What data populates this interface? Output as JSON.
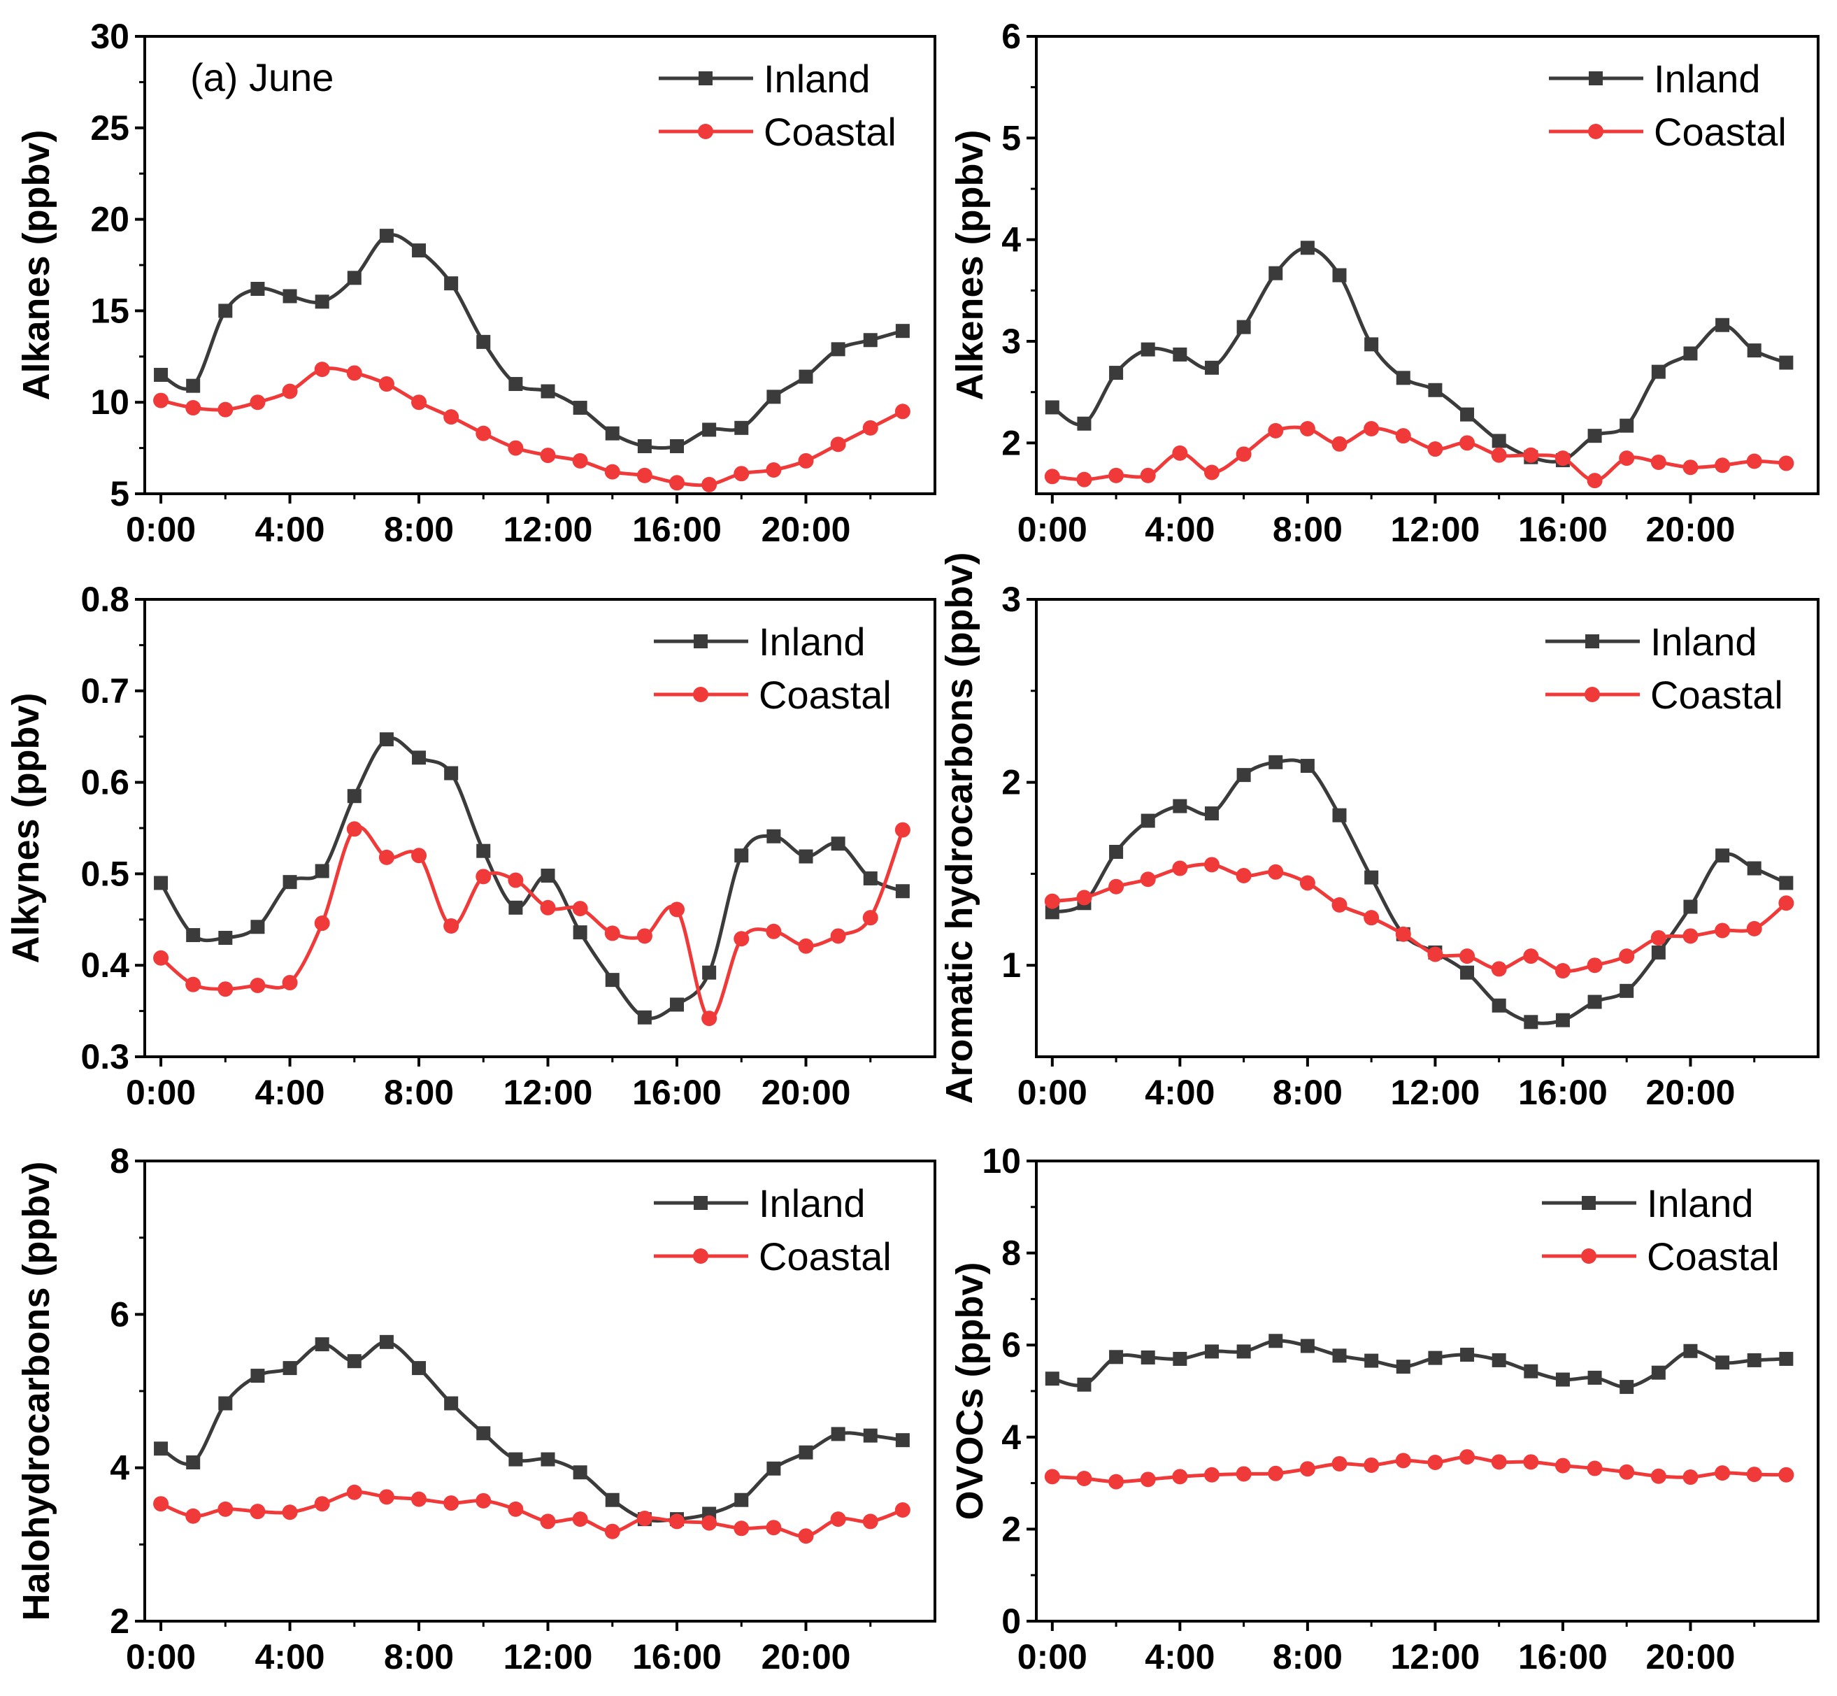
{
  "figure": {
    "x_tick_labels": [
      "0:00",
      "4:00",
      "8:00",
      "12:00",
      "16:00",
      "20:00"
    ],
    "colors": {
      "inland": "#3b3b3b",
      "coastal": "#f03a3a",
      "axis": "#000000"
    }
  },
  "chart_data": [
    {
      "type": "line",
      "id": "alkanes",
      "panel_label": "(a) June",
      "ylabel": "Alkanes (ppbv)",
      "xlabel": "",
      "x": [
        0,
        1,
        2,
        3,
        4,
        5,
        6,
        7,
        8,
        9,
        10,
        11,
        12,
        13,
        14,
        15,
        16,
        17,
        18,
        19,
        20,
        21,
        22,
        23
      ],
      "xlim": [
        -0.5,
        24
      ],
      "ylim": [
        5,
        30
      ],
      "yticks": [
        5,
        10,
        15,
        20,
        25,
        30
      ],
      "ytick_labels": [
        "5",
        "10",
        "15",
        "20",
        "25",
        "30"
      ],
      "legend_position": "top-right",
      "series": [
        {
          "name": "Inland",
          "marker": "square",
          "values": [
            11.5,
            10.9,
            15.0,
            16.2,
            15.8,
            15.5,
            16.8,
            19.1,
            18.3,
            16.5,
            13.3,
            11.0,
            10.6,
            9.7,
            8.3,
            7.6,
            7.6,
            8.5,
            8.6,
            10.3,
            11.4,
            12.9,
            13.4,
            13.9
          ]
        },
        {
          "name": "Coastal",
          "marker": "circle",
          "values": [
            10.1,
            9.7,
            9.6,
            10.0,
            10.6,
            11.8,
            11.6,
            11.0,
            10.0,
            9.2,
            8.3,
            7.5,
            7.1,
            6.8,
            6.2,
            6.0,
            5.6,
            5.5,
            6.1,
            6.3,
            6.8,
            7.7,
            8.6,
            9.5
          ]
        }
      ]
    },
    {
      "type": "line",
      "id": "alkenes",
      "ylabel": "Alkenes (ppbv)",
      "xlabel": "",
      "x": [
        0,
        1,
        2,
        3,
        4,
        5,
        6,
        7,
        8,
        9,
        10,
        11,
        12,
        13,
        14,
        15,
        16,
        17,
        18,
        19,
        20,
        21,
        22,
        23
      ],
      "xlim": [
        -0.5,
        24
      ],
      "ylim": [
        1.5,
        6
      ],
      "yticks": [
        2,
        3,
        4,
        5,
        6
      ],
      "ytick_labels": [
        "2",
        "3",
        "4",
        "5",
        "6"
      ],
      "legend_position": "top-right",
      "series": [
        {
          "name": "Inland",
          "marker": "square",
          "values": [
            2.35,
            2.19,
            2.69,
            2.92,
            2.87,
            2.74,
            3.14,
            3.67,
            3.92,
            3.65,
            2.97,
            2.64,
            2.52,
            2.28,
            2.02,
            1.86,
            1.83,
            2.07,
            2.17,
            2.7,
            2.88,
            3.16,
            2.91,
            2.79
          ]
        },
        {
          "name": "Coastal",
          "marker": "circle",
          "values": [
            1.67,
            1.64,
            1.68,
            1.68,
            1.9,
            1.71,
            1.89,
            2.12,
            2.14,
            1.99,
            2.14,
            2.07,
            1.94,
            2.0,
            1.88,
            1.88,
            1.85,
            1.63,
            1.85,
            1.81,
            1.76,
            1.78,
            1.82,
            1.8
          ]
        }
      ]
    },
    {
      "type": "line",
      "id": "alkynes",
      "ylabel": "Alkynes (ppbv)",
      "xlabel": "",
      "x": [
        0,
        1,
        2,
        3,
        4,
        5,
        6,
        7,
        8,
        9,
        10,
        11,
        12,
        13,
        14,
        15,
        16,
        17,
        18,
        19,
        20,
        21,
        22,
        23
      ],
      "xlim": [
        -0.5,
        24
      ],
      "ylim": [
        0.3,
        0.8
      ],
      "yticks": [
        0.3,
        0.4,
        0.5,
        0.6,
        0.7,
        0.8
      ],
      "ytick_labels": [
        "0.3",
        "0.4",
        "0.5",
        "0.6",
        "0.7",
        "0.8"
      ],
      "legend_position": "top-right",
      "series": [
        {
          "name": "Inland",
          "marker": "square",
          "values": [
            0.49,
            0.433,
            0.43,
            0.442,
            0.491,
            0.503,
            0.585,
            0.647,
            0.627,
            0.61,
            0.525,
            0.463,
            0.498,
            0.436,
            0.384,
            0.343,
            0.357,
            0.392,
            0.52,
            0.541,
            0.519,
            0.533,
            0.495,
            0.481
          ]
        },
        {
          "name": "Coastal",
          "marker": "circle",
          "values": [
            0.408,
            0.379,
            0.374,
            0.378,
            0.381,
            0.446,
            0.549,
            0.518,
            0.52,
            0.443,
            0.497,
            0.493,
            0.463,
            0.462,
            0.435,
            0.432,
            0.461,
            0.342,
            0.429,
            0.437,
            0.421,
            0.432,
            0.452,
            0.548
          ]
        }
      ]
    },
    {
      "type": "line",
      "id": "aromatics",
      "ylabel": "Aromatic hydrocarbons (ppbv)",
      "xlabel": "",
      "x": [
        0,
        1,
        2,
        3,
        4,
        5,
        6,
        7,
        8,
        9,
        10,
        11,
        12,
        13,
        14,
        15,
        16,
        17,
        18,
        19,
        20,
        21,
        22,
        23
      ],
      "xlim": [
        -0.5,
        24
      ],
      "ylim": [
        0.5,
        3
      ],
      "yticks": [
        1,
        2,
        3
      ],
      "ytick_labels": [
        "1",
        "2",
        "3"
      ],
      "legend_position": "top-right",
      "series": [
        {
          "name": "Inland",
          "marker": "square",
          "values": [
            1.29,
            1.34,
            1.62,
            1.79,
            1.87,
            1.83,
            2.04,
            2.11,
            2.09,
            1.82,
            1.48,
            1.17,
            1.07,
            0.96,
            0.78,
            0.69,
            0.7,
            0.8,
            0.86,
            1.07,
            1.32,
            1.6,
            1.53,
            1.45
          ]
        },
        {
          "name": "Coastal",
          "marker": "circle",
          "values": [
            1.35,
            1.37,
            1.43,
            1.47,
            1.53,
            1.55,
            1.49,
            1.51,
            1.45,
            1.33,
            1.26,
            1.17,
            1.06,
            1.05,
            0.98,
            1.05,
            0.97,
            1.0,
            1.05,
            1.15,
            1.16,
            1.19,
            1.2,
            1.34
          ]
        }
      ]
    },
    {
      "type": "line",
      "id": "halohydrocarbons",
      "ylabel": "Halohydrocarbons (ppbv)",
      "xlabel": "",
      "x": [
        0,
        1,
        2,
        3,
        4,
        5,
        6,
        7,
        8,
        9,
        10,
        11,
        12,
        13,
        14,
        15,
        16,
        17,
        18,
        19,
        20,
        21,
        22,
        23
      ],
      "xlim": [
        -0.5,
        24
      ],
      "ylim": [
        2,
        8
      ],
      "yticks": [
        2,
        4,
        6,
        8
      ],
      "ytick_labels": [
        "2",
        "4",
        "6",
        "8"
      ],
      "legend_position": "top-right",
      "series": [
        {
          "name": "Inland",
          "marker": "square",
          "values": [
            4.25,
            4.07,
            4.84,
            5.2,
            5.3,
            5.61,
            5.39,
            5.64,
            5.3,
            4.84,
            4.45,
            4.11,
            4.11,
            3.94,
            3.58,
            3.33,
            3.33,
            3.4,
            3.58,
            3.99,
            4.2,
            4.44,
            4.42,
            4.36
          ]
        },
        {
          "name": "Coastal",
          "marker": "circle",
          "values": [
            3.53,
            3.37,
            3.46,
            3.43,
            3.42,
            3.53,
            3.68,
            3.62,
            3.59,
            3.54,
            3.57,
            3.46,
            3.3,
            3.33,
            3.17,
            3.34,
            3.3,
            3.28,
            3.21,
            3.22,
            3.11,
            3.33,
            3.3,
            3.45
          ]
        }
      ]
    },
    {
      "type": "line",
      "id": "ovocs",
      "ylabel": "OVOCs (ppbv)",
      "xlabel": "",
      "x": [
        0,
        1,
        2,
        3,
        4,
        5,
        6,
        7,
        8,
        9,
        10,
        11,
        12,
        13,
        14,
        15,
        16,
        17,
        18,
        19,
        20,
        21,
        22,
        23
      ],
      "xlim": [
        -0.5,
        24
      ],
      "ylim": [
        0,
        10
      ],
      "yticks": [
        0,
        2,
        4,
        6,
        8,
        10
      ],
      "ytick_labels": [
        "0",
        "2",
        "4",
        "6",
        "8",
        "10"
      ],
      "legend_position": "top-right",
      "series": [
        {
          "name": "Inland",
          "marker": "square",
          "values": [
            5.27,
            5.14,
            5.74,
            5.73,
            5.7,
            5.86,
            5.86,
            6.09,
            5.98,
            5.77,
            5.66,
            5.53,
            5.72,
            5.79,
            5.67,
            5.43,
            5.25,
            5.29,
            5.09,
            5.4,
            5.87,
            5.62,
            5.67,
            5.7
          ]
        },
        {
          "name": "Coastal",
          "marker": "circle",
          "values": [
            3.14,
            3.1,
            3.03,
            3.08,
            3.14,
            3.18,
            3.2,
            3.21,
            3.31,
            3.42,
            3.39,
            3.49,
            3.45,
            3.57,
            3.46,
            3.46,
            3.38,
            3.32,
            3.24,
            3.15,
            3.13,
            3.22,
            3.19,
            3.18
          ]
        }
      ]
    }
  ]
}
